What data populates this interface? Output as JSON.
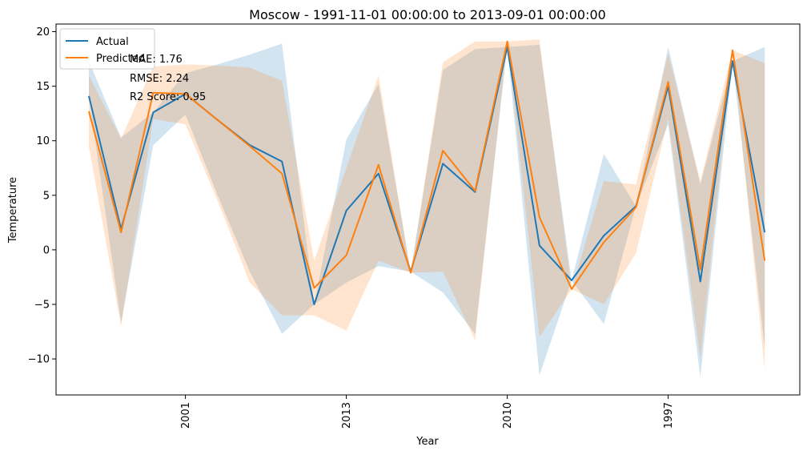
{
  "chart_data": {
    "type": "line",
    "title": "Moscow - 1991-11-01 00:00:00 to 2013-09-01 00:00:00",
    "xlabel": "Year",
    "ylabel": "Temperature",
    "ylim": [
      -13.3,
      20.7
    ],
    "y_ticks": [
      -10,
      -5,
      0,
      5,
      10,
      15,
      20
    ],
    "x_count": 22,
    "x_tick_labels": [
      {
        "index": 3,
        "label": "2001"
      },
      {
        "index": 8,
        "label": "2013"
      },
      {
        "index": 13,
        "label": "2010"
      },
      {
        "index": 18,
        "label": "1997"
      }
    ],
    "series": [
      {
        "name": "Actual",
        "color": "#1f77b4",
        "values": [
          14.1,
          1.9,
          12.6,
          14.3,
          11.9,
          9.6,
          8.1,
          -5.0,
          3.6,
          7.0,
          -2.0,
          7.9,
          5.3,
          18.6,
          0.4,
          -2.8,
          1.3,
          4.0,
          15.0,
          -2.9,
          17.3,
          1.6
        ],
        "band_low": [
          14.1,
          -6.7,
          9.6,
          12.4,
          5.0,
          -2.0,
          -7.7,
          -5.0,
          -3.0,
          -1.5,
          -2.0,
          -3.9,
          -7.7,
          18.6,
          -11.5,
          -2.8,
          -6.8,
          4.0,
          11.5,
          -11.7,
          17.3,
          -9.0
        ],
        "band_high": [
          17.3,
          10.3,
          12.6,
          16.2,
          17.0,
          17.9,
          18.9,
          -5.0,
          10.1,
          15.2,
          -2.0,
          16.5,
          18.4,
          18.6,
          18.8,
          -2.8,
          8.8,
          4.0,
          18.6,
          6.0,
          17.3,
          18.6
        ]
      },
      {
        "name": "Predicted",
        "color": "#ff7f0e",
        "values": [
          12.7,
          1.6,
          14.4,
          14.3,
          11.9,
          9.5,
          7.0,
          -3.5,
          -0.5,
          7.8,
          -2.1,
          9.1,
          5.4,
          19.1,
          3.0,
          -3.6,
          0.7,
          3.9,
          15.4,
          -1.8,
          18.3,
          -1.0
        ],
        "band_low": [
          9.5,
          -7.0,
          12.0,
          11.5,
          4.5,
          -3.0,
          -6.0,
          -6.0,
          -7.4,
          -1.0,
          -2.1,
          -2.0,
          -8.3,
          19.1,
          -8.0,
          -3.6,
          -5.0,
          -0.3,
          12.0,
          -10.0,
          18.3,
          -11.0
        ],
        "band_high": [
          16.0,
          10.2,
          16.8,
          17.0,
          16.9,
          16.7,
          15.5,
          -1.0,
          7.5,
          16.0,
          -2.1,
          17.2,
          19.1,
          19.1,
          19.3,
          -3.6,
          6.3,
          6.0,
          18.0,
          6.3,
          18.3,
          17.1
        ]
      }
    ],
    "metrics": {
      "mae": "MAE: 1.76",
      "rmse": "RMSE: 2.24",
      "r2": "R2 Score: 0.95"
    },
    "legend_position": "top-left"
  }
}
